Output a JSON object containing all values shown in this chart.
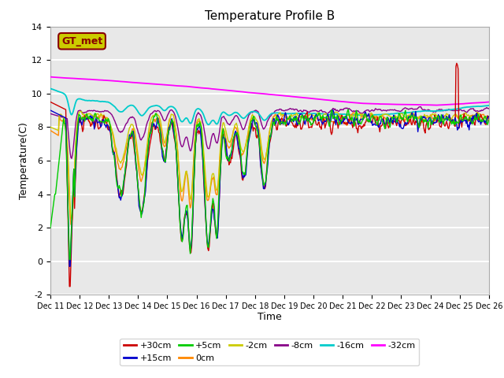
{
  "title": "Temperature Profile B",
  "xlabel": "Time",
  "ylabel": "Temperature(C)",
  "ylim": [
    -2,
    14
  ],
  "yticks": [
    -2,
    0,
    2,
    4,
    6,
    8,
    10,
    12,
    14
  ],
  "xtick_labels": [
    "Dec 11",
    "Dec 12",
    "Dec 13",
    "Dec 14",
    "Dec 15",
    "Dec 16",
    "Dec 17",
    "Dec 18",
    "Dec 19",
    "Dec 20",
    "Dec 21",
    "Dec 22",
    "Dec 23",
    "Dec 24",
    "Dec 25",
    "Dec 26"
  ],
  "series_colors": {
    "+30cm": "#cc0000",
    "+15cm": "#0000cc",
    "+5cm": "#00cc00",
    "0cm": "#ff8800",
    "-2cm": "#cccc00",
    "-8cm": "#880088",
    "-16cm": "#00cccc",
    "-32cm": "#ff00ff"
  },
  "legend_label": "GT_met",
  "legend_box_facecolor": "#cccc00",
  "legend_box_edgecolor": "#880000",
  "background_color": "#e8e8e8",
  "grid_color": "#ffffff",
  "figwidth": 6.4,
  "figheight": 4.8,
  "dpi": 100
}
